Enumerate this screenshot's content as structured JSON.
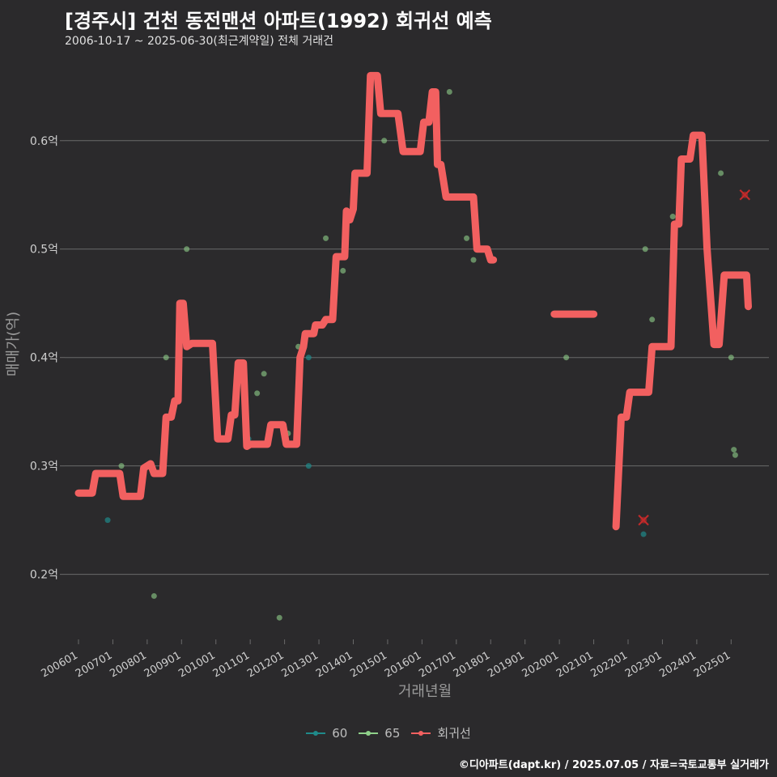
{
  "chart_data": {
    "type": "line",
    "title": "[경주시] 건천 동전맨션 아파트(1992) 회귀선 예측",
    "subtitle": "2006-10-17 ~ 2025-06-30(최근계약일) 전체 거래건",
    "xlabel": "거래년월",
    "ylabel": "매매가(억)",
    "ylim": [
      0.14,
      0.67
    ],
    "xlim": [
      2005.6,
      2026.1
    ],
    "y_ticks": [
      0.2,
      0.3,
      0.4,
      0.5,
      0.6
    ],
    "y_tick_labels": [
      "0.2억",
      "0.3억",
      "0.4억",
      "0.5억",
      "0.6억"
    ],
    "x_tick_labels": [
      "200601",
      "200701",
      "200801",
      "200901",
      "201001",
      "201101",
      "201201",
      "201301",
      "201401",
      "201501",
      "201601",
      "201701",
      "201801",
      "201901",
      "202001",
      "202101",
      "202201",
      "202301",
      "202401",
      "202501"
    ],
    "x_tick_values": [
      2006,
      2007,
      2008,
      2009,
      2010,
      2011,
      2012,
      2013,
      2014,
      2015,
      2016,
      2017,
      2018,
      2019,
      2020,
      2021,
      2022,
      2023,
      2024,
      2025
    ],
    "legend": [
      "60",
      "65",
      "회귀선"
    ],
    "colors": {
      "s60": "#1f8a8a",
      "s65": "#8fd18a",
      "line": "#f26060",
      "outlier": "#c42a2a",
      "grid": "#6a6a6a"
    },
    "series": [
      {
        "name": "60",
        "points": [
          [
            2006.85,
            0.25
          ],
          [
            2010.95,
            0.325
          ],
          [
            2012.7,
            0.4
          ],
          [
            2012.7,
            0.3
          ],
          [
            2022.45,
            0.237
          ]
        ]
      },
      {
        "name": "65",
        "points": [
          [
            2007.25,
            0.3
          ],
          [
            2008.2,
            0.18
          ],
          [
            2008.55,
            0.4
          ],
          [
            2009.15,
            0.5
          ],
          [
            2011.4,
            0.385
          ],
          [
            2011.2,
            0.367
          ],
          [
            2011.85,
            0.16
          ],
          [
            2012.1,
            0.33
          ],
          [
            2012.4,
            0.41
          ],
          [
            2013.2,
            0.51
          ],
          [
            2013.7,
            0.48
          ],
          [
            2014.9,
            0.6
          ],
          [
            2016.8,
            0.645
          ],
          [
            2017.3,
            0.51
          ],
          [
            2017.5,
            0.49
          ],
          [
            2020.2,
            0.4
          ],
          [
            2022.5,
            0.5
          ],
          [
            2022.7,
            0.435
          ],
          [
            2023.3,
            0.53
          ],
          [
            2024.7,
            0.57
          ],
          [
            2025.0,
            0.4
          ],
          [
            2025.08,
            0.315
          ],
          [
            2025.12,
            0.31
          ]
        ]
      },
      {
        "name": "회귀선",
        "segments": [
          [
            [
              2006.0,
              0.275
            ],
            [
              2006.4,
              0.275
            ],
            [
              2006.5,
              0.293
            ],
            [
              2007.2,
              0.293
            ],
            [
              2007.3,
              0.272
            ],
            [
              2007.8,
              0.272
            ],
            [
              2007.9,
              0.298
            ],
            [
              2008.1,
              0.302
            ],
            [
              2008.2,
              0.293
            ],
            [
              2008.45,
              0.293
            ],
            [
              2008.55,
              0.345
            ],
            [
              2008.7,
              0.345
            ],
            [
              2008.8,
              0.36
            ],
            [
              2008.9,
              0.36
            ],
            [
              2008.95,
              0.45
            ],
            [
              2009.05,
              0.45
            ],
            [
              2009.15,
              0.41
            ],
            [
              2009.3,
              0.413
            ],
            [
              2009.9,
              0.413
            ],
            [
              2010.05,
              0.325
            ],
            [
              2010.35,
              0.325
            ],
            [
              2010.45,
              0.347
            ],
            [
              2010.55,
              0.347
            ],
            [
              2010.65,
              0.395
            ],
            [
              2010.8,
              0.395
            ],
            [
              2010.9,
              0.318
            ],
            [
              2011.0,
              0.32
            ],
            [
              2011.5,
              0.32
            ],
            [
              2011.6,
              0.338
            ],
            [
              2011.95,
              0.338
            ],
            [
              2012.05,
              0.32
            ],
            [
              2012.35,
              0.32
            ],
            [
              2012.45,
              0.4
            ],
            [
              2012.55,
              0.41
            ],
            [
              2012.6,
              0.422
            ],
            [
              2012.85,
              0.422
            ],
            [
              2012.9,
              0.43
            ],
            [
              2013.1,
              0.43
            ],
            [
              2013.2,
              0.435
            ],
            [
              2013.4,
              0.435
            ],
            [
              2013.5,
              0.493
            ],
            [
              2013.75,
              0.493
            ],
            [
              2013.8,
              0.535
            ],
            [
              2013.9,
              0.527
            ],
            [
              2014.0,
              0.537
            ],
            [
              2014.05,
              0.57
            ],
            [
              2014.4,
              0.57
            ],
            [
              2014.5,
              0.66
            ],
            [
              2014.7,
              0.66
            ],
            [
              2014.8,
              0.625
            ],
            [
              2015.3,
              0.625
            ],
            [
              2015.45,
              0.59
            ],
            [
              2015.95,
              0.59
            ],
            [
              2016.05,
              0.617
            ],
            [
              2016.2,
              0.617
            ],
            [
              2016.3,
              0.645
            ],
            [
              2016.4,
              0.645
            ],
            [
              2016.45,
              0.578
            ],
            [
              2016.55,
              0.578
            ],
            [
              2016.7,
              0.548
            ],
            [
              2017.5,
              0.548
            ],
            [
              2017.6,
              0.5
            ],
            [
              2017.9,
              0.5
            ],
            [
              2018.0,
              0.49
            ],
            [
              2018.08,
              0.49
            ]
          ],
          [
            [
              2019.85,
              0.44
            ],
            [
              2021.0,
              0.44
            ]
          ],
          [
            [
              2021.65,
              0.244
            ],
            [
              2021.8,
              0.345
            ],
            [
              2021.95,
              0.345
            ],
            [
              2022.05,
              0.368
            ],
            [
              2022.6,
              0.368
            ],
            [
              2022.7,
              0.41
            ],
            [
              2023.25,
              0.41
            ],
            [
              2023.35,
              0.523
            ],
            [
              2023.48,
              0.523
            ],
            [
              2023.55,
              0.583
            ],
            [
              2023.8,
              0.583
            ],
            [
              2023.9,
              0.605
            ],
            [
              2024.15,
              0.605
            ],
            [
              2024.3,
              0.5
            ],
            [
              2024.5,
              0.412
            ],
            [
              2024.65,
              0.412
            ],
            [
              2024.8,
              0.476
            ],
            [
              2025.45,
              0.476
            ],
            [
              2025.5,
              0.447
            ]
          ]
        ]
      }
    ],
    "outliers": [
      [
        2022.45,
        0.25
      ],
      [
        2025.4,
        0.55
      ]
    ]
  }
}
